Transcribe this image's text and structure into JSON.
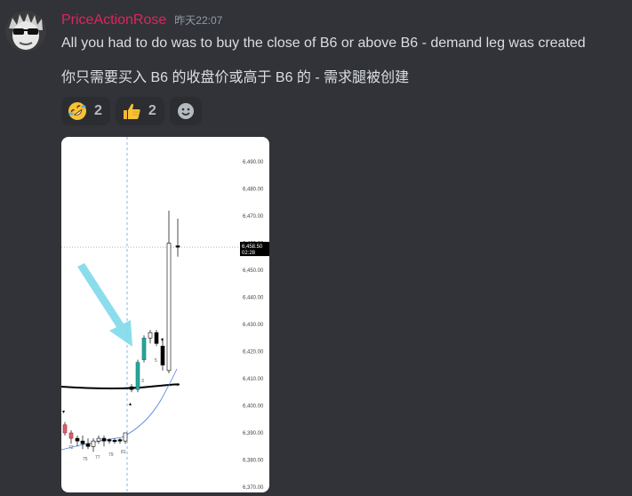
{
  "message": {
    "author": "PriceActionRose",
    "timestamp": "昨天22:07",
    "line1": "All you had to do was to buy the close of B6 or above B6  - demand leg was created",
    "line2": "你只需要买入 B6 的收盘价或高于 B6 的 - 需求腿被创建"
  },
  "reactions": [
    {
      "icon": "rofl-emoji-icon",
      "count": "2"
    },
    {
      "icon": "thumbs-up-emoji-icon",
      "count": "2"
    },
    {
      "icon": "add-reaction-icon"
    }
  ],
  "chart": {
    "price_ticks": [
      "6,490.00",
      "6,480.00",
      "6,470.00",
      "6,460.00",
      "6,450.00",
      "6,440.00",
      "6,430.00",
      "6,420.00",
      "6,410.00",
      "6,400.00",
      "6,390.00",
      "6,380.00",
      "6,370.00"
    ],
    "price_label": "6,458.50",
    "countdown_label": "02:28",
    "bar_labels": [
      "72",
      "75",
      "77",
      "79",
      "81",
      "3",
      "5"
    ],
    "colors": {
      "bull": "#26a69a",
      "bear": "#000000",
      "red_bear": "#e05a6a",
      "arrow": "#7fd9ea",
      "ma": "#4a7fe0"
    }
  }
}
